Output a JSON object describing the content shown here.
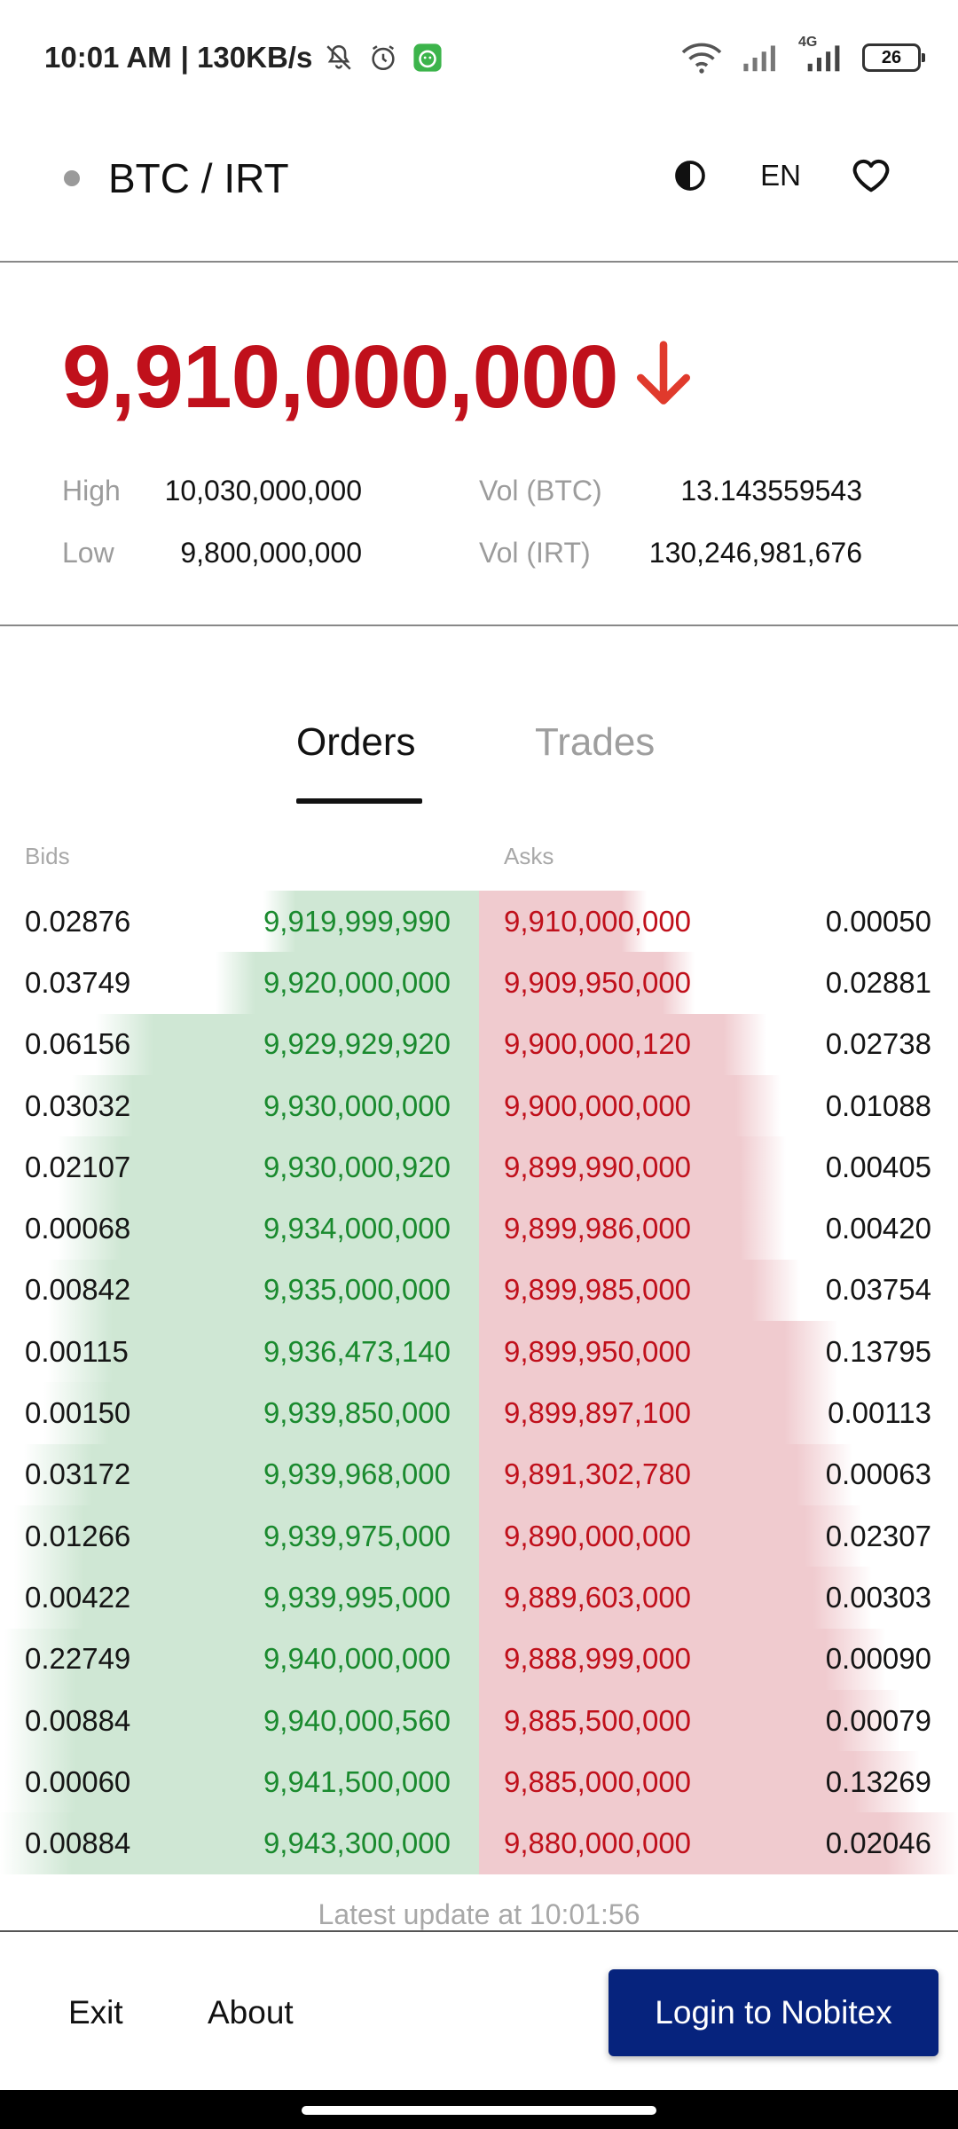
{
  "status_bar": {
    "time": "10:01 AM",
    "speed": "| 130KB/s",
    "network_label": "4G",
    "battery": "26",
    "icons": [
      "mute-icon",
      "alarm-icon",
      "app-notification-icon",
      "wifi-icon",
      "signal-icon",
      "signal-4g-icon",
      "battery-icon"
    ]
  },
  "header": {
    "pair": "BTC / IRT",
    "lang": "EN",
    "icons": [
      "status-dot",
      "contrast-icon",
      "heart-icon"
    ]
  },
  "price": {
    "last": "9,910,000,000",
    "direction": "down",
    "high_label": "High",
    "high": "10,030,000,000",
    "low_label": "Low",
    "low": "9,800,000,000",
    "vol_btc_label": "Vol (BTC)",
    "vol_btc": "13.143559543",
    "vol_irt_label": "Vol (IRT)",
    "vol_irt": "130,246,981,676"
  },
  "tabs": [
    {
      "label": "Orders",
      "active": true
    },
    {
      "label": "Trades",
      "active": false
    }
  ],
  "orderbook": {
    "bids_label": "Bids",
    "asks_label": "Asks",
    "rows": [
      {
        "bid_amount": "0.02876",
        "bid_price": "9,919,999,990",
        "ask_price": "9,910,000,000",
        "ask_amount": "0.00050",
        "bid_depth": 0.45,
        "ask_depth": 0.35
      },
      {
        "bid_amount": "0.03749",
        "bid_price": "9,920,000,000",
        "ask_price": "9,909,950,000",
        "ask_amount": "0.02881",
        "bid_depth": 0.55,
        "ask_depth": 0.45
      },
      {
        "bid_amount": "0.06156",
        "bid_price": "9,929,929,920",
        "ask_price": "9,900,000,120",
        "ask_amount": "0.02738",
        "bid_depth": 0.8,
        "ask_depth": 0.6
      },
      {
        "bid_amount": "0.03032",
        "bid_price": "9,930,000,000",
        "ask_price": "9,900,000,000",
        "ask_amount": "0.01088",
        "bid_depth": 0.85,
        "ask_depth": 0.63
      },
      {
        "bid_amount": "0.02107",
        "bid_price": "9,930,000,920",
        "ask_price": "9,899,990,000",
        "ask_amount": "0.00405",
        "bid_depth": 0.88,
        "ask_depth": 0.64
      },
      {
        "bid_amount": "0.00068",
        "bid_price": "9,934,000,000",
        "ask_price": "9,899,986,000",
        "ask_amount": "0.00420",
        "bid_depth": 0.88,
        "ask_depth": 0.64
      },
      {
        "bid_amount": "0.00842",
        "bid_price": "9,935,000,000",
        "ask_price": "9,899,985,000",
        "ask_amount": "0.03754",
        "bid_depth": 0.9,
        "ask_depth": 0.67
      },
      {
        "bid_amount": "0.00115",
        "bid_price": "9,936,473,140",
        "ask_price": "9,899,950,000",
        "ask_amount": "0.13795",
        "bid_depth": 0.9,
        "ask_depth": 0.75
      },
      {
        "bid_amount": "0.00150",
        "bid_price": "9,939,850,000",
        "ask_price": "9,899,897,100",
        "ask_amount": "0.00113",
        "bid_depth": 0.91,
        "ask_depth": 0.75
      },
      {
        "bid_amount": "0.03172",
        "bid_price": "9,939,968,000",
        "ask_price": "9,891,302,780",
        "ask_amount": "0.00063",
        "bid_depth": 0.95,
        "ask_depth": 0.78
      },
      {
        "bid_amount": "0.01266",
        "bid_price": "9,939,975,000",
        "ask_price": "9,890,000,000",
        "ask_amount": "0.02307",
        "bid_depth": 0.97,
        "ask_depth": 0.8
      },
      {
        "bid_amount": "0.00422",
        "bid_price": "9,939,995,000",
        "ask_price": "9,889,603,000",
        "ask_amount": "0.00303",
        "bid_depth": 0.97,
        "ask_depth": 0.82
      },
      {
        "bid_amount": "0.22749",
        "bid_price": "9,940,000,000",
        "ask_price": "9,888,999,000",
        "ask_amount": "0.00090",
        "bid_depth": 0.99,
        "ask_depth": 0.85
      },
      {
        "bid_amount": "0.00884",
        "bid_price": "9,940,000,560",
        "ask_price": "9,885,500,000",
        "ask_amount": "0.00079",
        "bid_depth": 0.99,
        "ask_depth": 0.88
      },
      {
        "bid_amount": "0.00060",
        "bid_price": "9,941,500,000",
        "ask_price": "9,885,000,000",
        "ask_amount": "0.13269",
        "bid_depth": 0.99,
        "ask_depth": 0.92
      },
      {
        "bid_amount": "0.00884",
        "bid_price": "9,943,300,000",
        "ask_price": "9,880,000,000",
        "ask_amount": "0.02046",
        "bid_depth": 1.0,
        "ask_depth": 1.0
      }
    ],
    "latest_update": "Latest update at 10:01:56"
  },
  "footer": {
    "exit_label": "Exit",
    "about_label": "About",
    "login_label": "Login to Nobitex"
  },
  "colors": {
    "ask_red": "#c0101b",
    "bid_green": "#1a8a2e",
    "bid_fill": "#cfe7d4",
    "ask_fill": "#f0cbcf",
    "login_blue": "#06237d"
  }
}
